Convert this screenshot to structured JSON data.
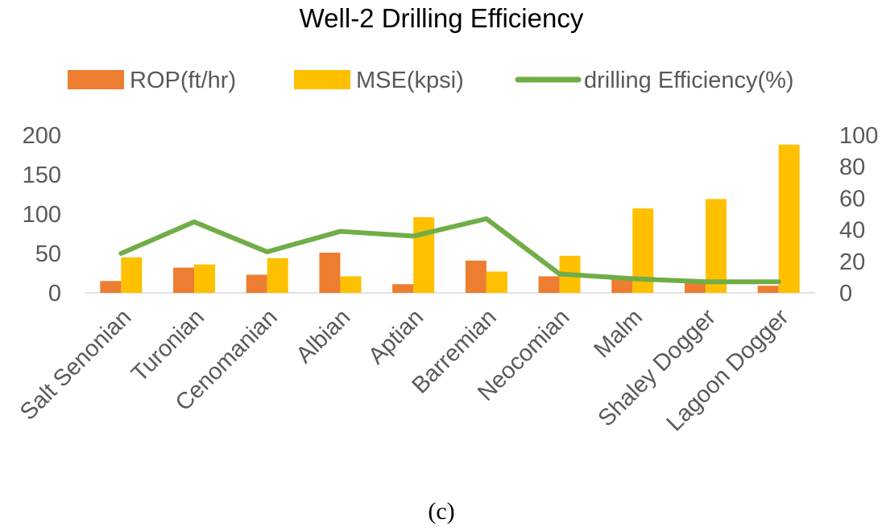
{
  "chart_data": {
    "type": "bar",
    "title": "Well-2 Drilling Efficiency",
    "caption": "(c)",
    "categories": [
      "Salt Senonian",
      "Turonian",
      "Cenomanian",
      "Albian",
      "Aptian",
      "Barremian",
      "Neocomian",
      "Malm",
      "Shaley Dogger",
      "Lagoon Dogger"
    ],
    "series": [
      {
        "name": "ROP(ft/hr)",
        "type": "bar",
        "axis": "left",
        "color": "#ED7D31",
        "values": [
          15,
          32,
          23,
          51,
          11,
          41,
          21,
          17,
          13,
          9
        ]
      },
      {
        "name": "MSE(kpsi)",
        "type": "bar",
        "axis": "left",
        "color": "#FFC000",
        "values": [
          45,
          36,
          44,
          21,
          96,
          27,
          47,
          107,
          119,
          188
        ]
      },
      {
        "name": "drilling Efficiency(%)",
        "type": "line",
        "axis": "right",
        "color": "#70AD47",
        "values": [
          25,
          45,
          26,
          39,
          36,
          47,
          12,
          9,
          7,
          7
        ]
      }
    ],
    "y_left": {
      "min": 0,
      "max": 200,
      "ticks": [
        0,
        50,
        100,
        150,
        200
      ]
    },
    "y_right": {
      "min": 0,
      "max": 100,
      "ticks": [
        0,
        20,
        40,
        60,
        80,
        100
      ]
    },
    "legend_position": "top",
    "grid": false
  }
}
